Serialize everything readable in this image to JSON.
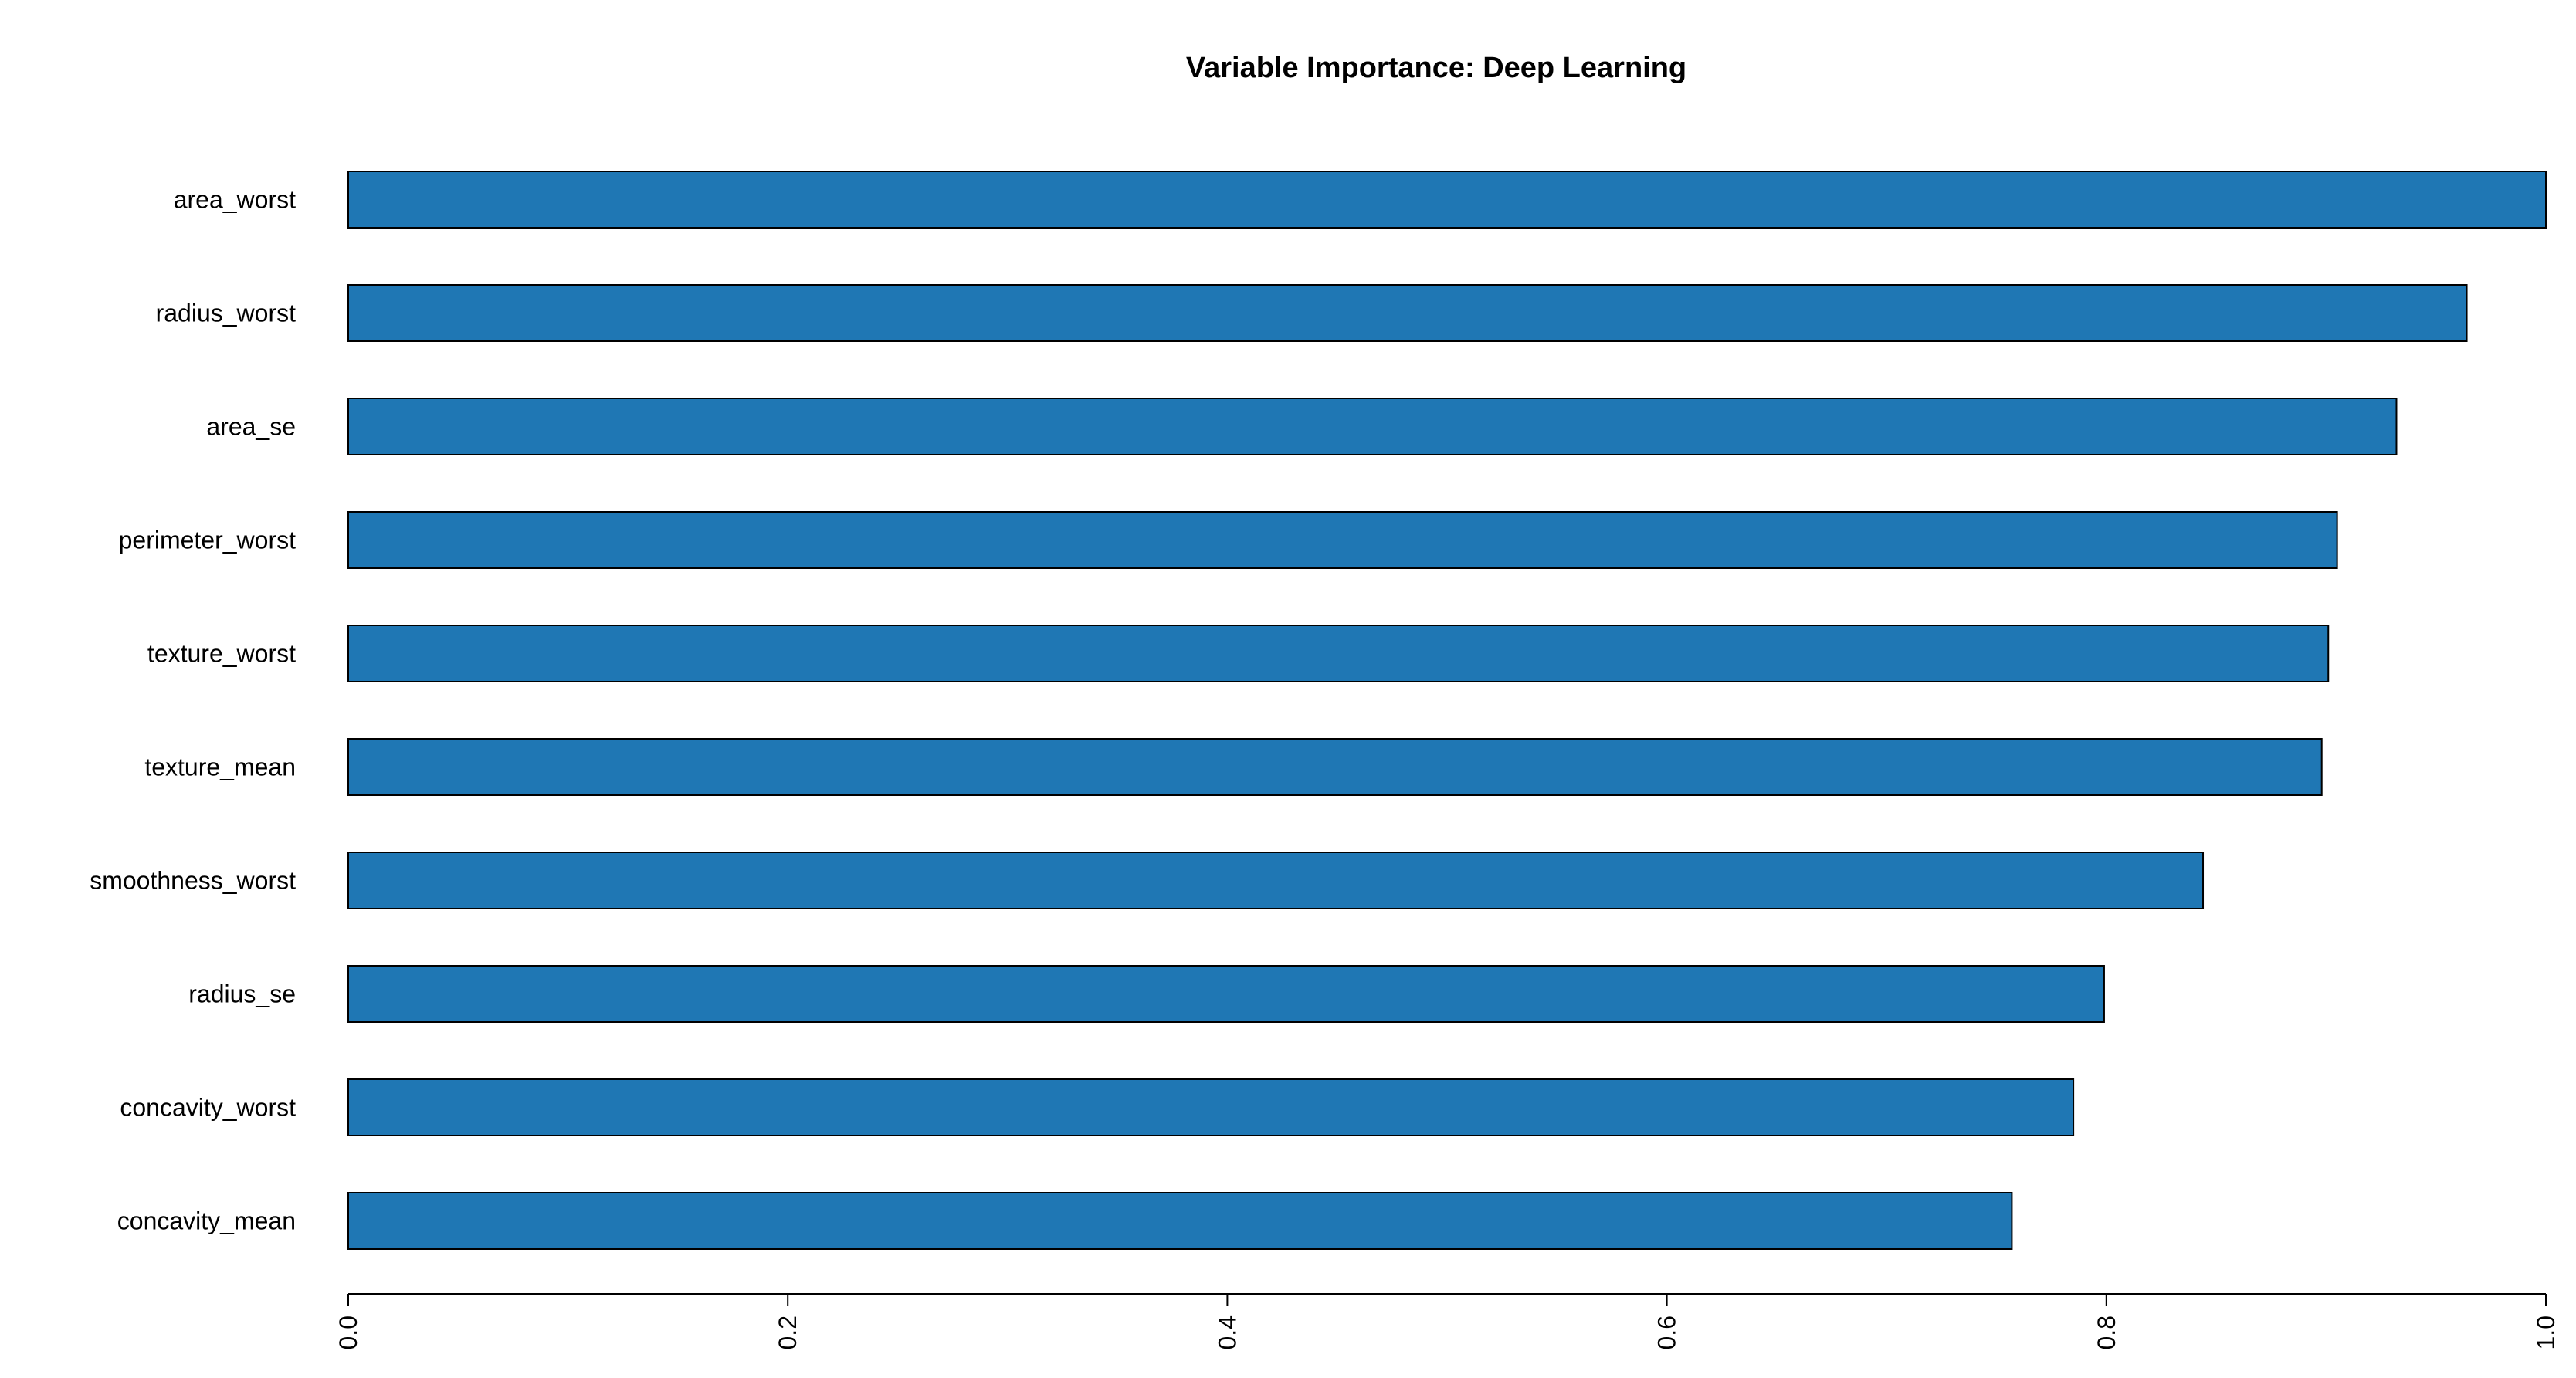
{
  "chart_data": {
    "type": "bar",
    "orientation": "horizontal",
    "title": "Variable Importance: Deep Learning",
    "xlabel": "",
    "ylabel": "",
    "categories": [
      "area_worst",
      "radius_worst",
      "area_se",
      "perimeter_worst",
      "texture_worst",
      "texture_mean",
      "smoothness_worst",
      "radius_se",
      "concavity_worst",
      "concavity_mean"
    ],
    "values": [
      1.0,
      0.964,
      0.932,
      0.905,
      0.901,
      0.898,
      0.844,
      0.799,
      0.785,
      0.757
    ],
    "xlim": [
      0,
      1.0
    ],
    "x_ticks": [
      "0.0",
      "0.2",
      "0.4",
      "0.6",
      "0.8",
      "1.0"
    ],
    "bar_color": "#1f77b4",
    "bar_edge_color": "#000000",
    "grid": false,
    "legend": "none"
  }
}
